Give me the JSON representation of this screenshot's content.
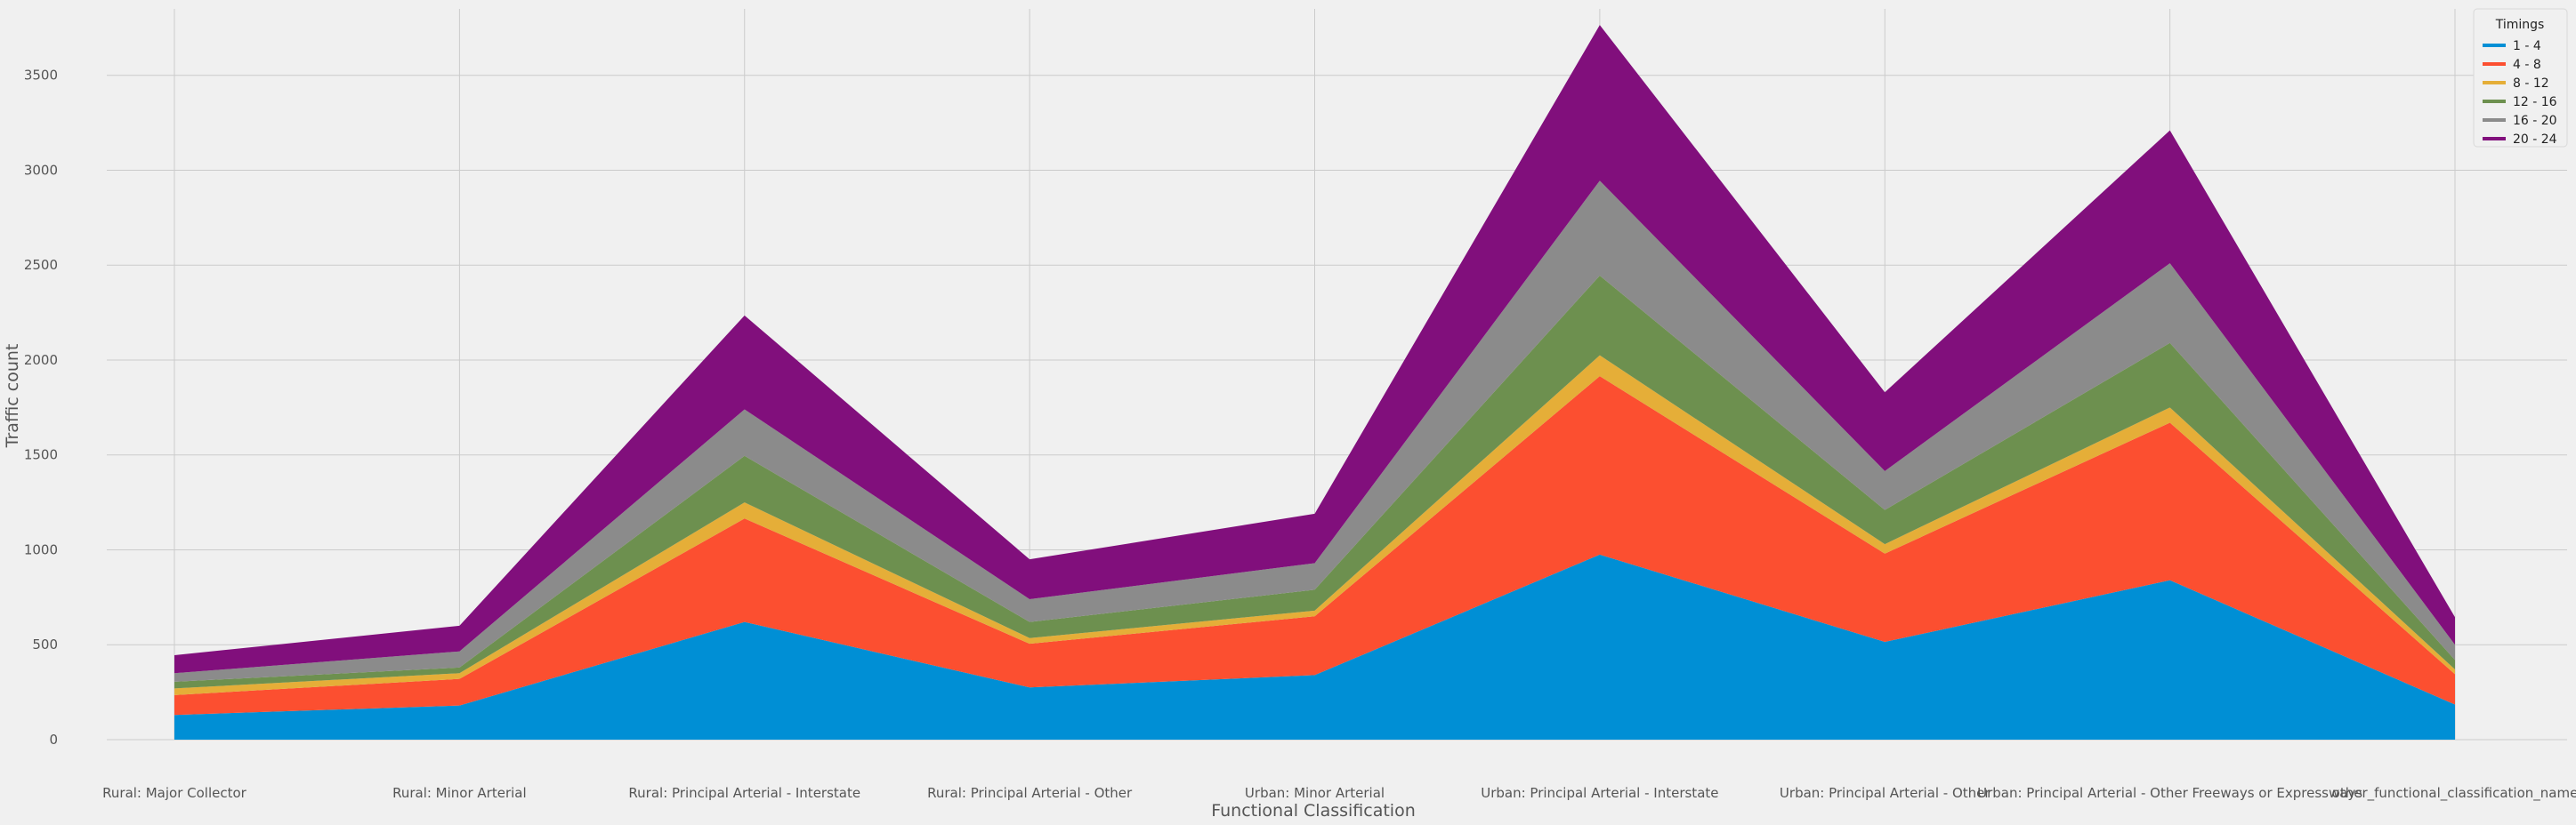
{
  "chart_data": {
    "type": "area",
    "stacked": true,
    "xlabel": "Functional Classification",
    "ylabel": "Traffic count",
    "ylim": [
      0,
      3850
    ],
    "yticks": [
      0,
      500,
      1000,
      1500,
      2000,
      2500,
      3000,
      3500
    ],
    "grid": true,
    "legend_title": "Timings",
    "legend_position": "top-right",
    "categories": [
      "Rural: Major Collector",
      "Rural: Minor Arterial",
      "Rural: Principal Arterial - Interstate",
      "Rural: Principal Arterial - Other",
      "Urban: Minor Arterial",
      "Urban: Principal Arterial - Interstate",
      "Urban: Principal Arterial - Other",
      "Urban: Principal Arterial - Other Freeways or Expressways",
      "other_functional_classification_name"
    ],
    "series": [
      {
        "name": "1 - 4",
        "color": "#008fd5",
        "values": [
          130,
          180,
          620,
          275,
          340,
          975,
          515,
          840,
          185
        ]
      },
      {
        "name": "4 - 8",
        "color": "#fc4f30",
        "values": [
          105,
          140,
          545,
          230,
          310,
          940,
          465,
          830,
          160
        ]
      },
      {
        "name": "8 - 12",
        "color": "#e5ae38",
        "values": [
          35,
          30,
          85,
          30,
          30,
          110,
          50,
          80,
          25
        ]
      },
      {
        "name": "12 - 16",
        "color": "#6d904f",
        "values": [
          35,
          30,
          245,
          85,
          110,
          420,
          180,
          340,
          50
        ]
      },
      {
        "name": "16 - 20",
        "color": "#8b8b8b",
        "values": [
          45,
          85,
          245,
          120,
          140,
          500,
          205,
          420,
          80
        ]
      },
      {
        "name": "20 - 24",
        "color": "#810f7c",
        "values": [
          95,
          135,
          495,
          210,
          260,
          820,
          415,
          700,
          145
        ]
      }
    ]
  }
}
